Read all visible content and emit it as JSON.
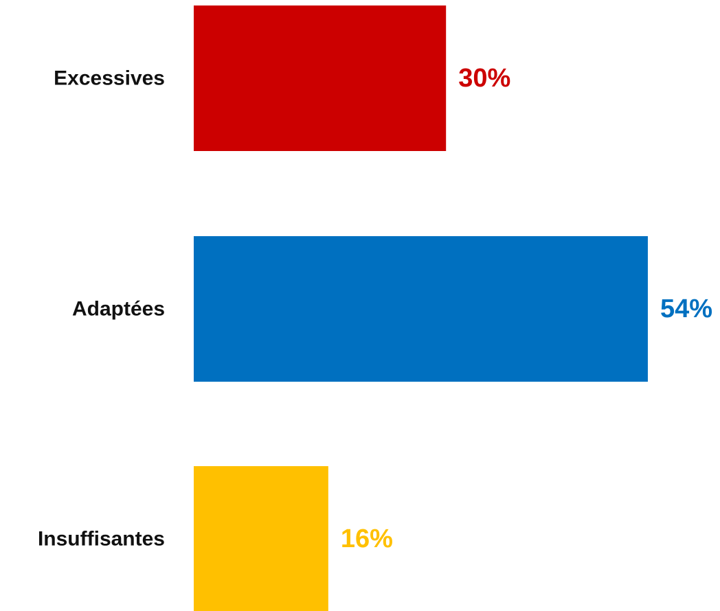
{
  "chart_data": {
    "type": "bar",
    "orientation": "horizontal",
    "categories": [
      "Excessives",
      "Adaptées",
      "Insuffisantes"
    ],
    "values": [
      30,
      54,
      16
    ],
    "value_labels": [
      "30%",
      "54%",
      "16%"
    ],
    "unit": "%",
    "colors": [
      "#cc0000",
      "#0070c0",
      "#ffc000"
    ],
    "grid": false,
    "legend": "none"
  }
}
